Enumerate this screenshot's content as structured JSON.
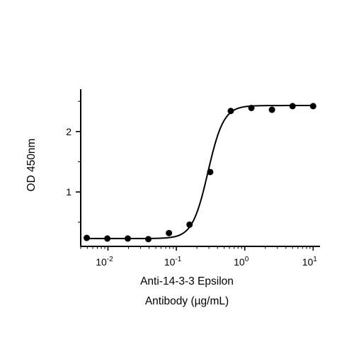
{
  "chart_data": {
    "type": "scatter",
    "xlabel": [
      "Anti-14-3-3 Epsilon",
      "Antibody (µg/mL)"
    ],
    "ylabel": "OD 450nm",
    "x_scale": "log",
    "x_ticks": [
      {
        "value": 0.01,
        "base": "10",
        "exp": "-2"
      },
      {
        "value": 0.1,
        "base": "10",
        "exp": "-1"
      },
      {
        "value": 1,
        "base": "10",
        "exp": "0"
      },
      {
        "value": 10,
        "base": "10",
        "exp": "1"
      }
    ],
    "y_ticks": [
      {
        "value": 1,
        "label": "1"
      },
      {
        "value": 2,
        "label": "2"
      }
    ],
    "xlim": [
      0.004,
      12.6
    ],
    "ylim": [
      0.1,
      2.7
    ],
    "grid": false,
    "series": [
      {
        "points": [
          {
            "x": 0.0049,
            "y": 0.24
          },
          {
            "x": 0.0098,
            "y": 0.23
          },
          {
            "x": 0.0195,
            "y": 0.23
          },
          {
            "x": 0.039,
            "y": 0.22
          },
          {
            "x": 0.078,
            "y": 0.32
          },
          {
            "x": 0.156,
            "y": 0.46
          },
          {
            "x": 0.3125,
            "y": 1.33
          },
          {
            "x": 0.625,
            "y": 2.34
          },
          {
            "x": 1.25,
            "y": 2.39
          },
          {
            "x": 2.5,
            "y": 2.36
          },
          {
            "x": 5,
            "y": 2.42
          },
          {
            "x": 10,
            "y": 2.42
          }
        ],
        "fit": {
          "model": "4PL",
          "bottom": 0.23,
          "top": 2.43,
          "ec50": 0.29,
          "hill": 3.8
        }
      }
    ]
  }
}
